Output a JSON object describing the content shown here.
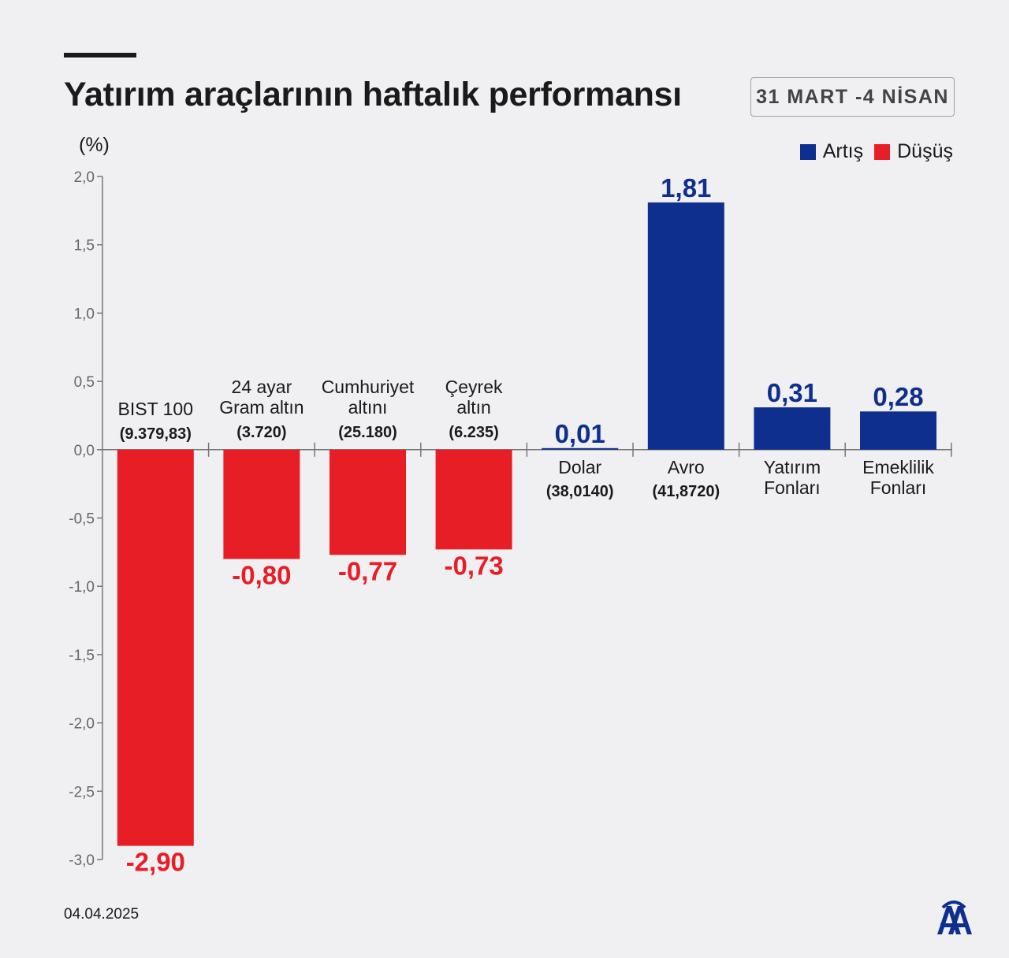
{
  "header": {
    "title": "Yatırım araçlarının haftalık performansı",
    "date_range": "31 MART -4 NİSAN"
  },
  "unit_label": "(%)",
  "legend": {
    "items": [
      {
        "label": "Artış",
        "color": "#0f2f8e"
      },
      {
        "label": "Düşüş",
        "color": "#e81e26"
      }
    ]
  },
  "footer": {
    "date": "04.04.2025",
    "logo": "anadolu-agency-logo"
  },
  "colors": {
    "increase": "#0f2f8e",
    "decrease": "#e81e26"
  },
  "chart_data": {
    "type": "bar",
    "ylim": [
      -3.0,
      2.0
    ],
    "yticks": [
      "2,0",
      "1,5",
      "1,0",
      "0,5",
      "0,0",
      "-0,5",
      "-1,0",
      "-1,5",
      "-2,0",
      "-2,5",
      "-3,0"
    ],
    "categories": [
      {
        "lines": [
          "BIST 100"
        ],
        "sub": "(9.379,83)"
      },
      {
        "lines": [
          "24 ayar",
          "Gram altın"
        ],
        "sub": "(3.720)"
      },
      {
        "lines": [
          "Cumhuriyet",
          "altını"
        ],
        "sub": "(25.180)"
      },
      {
        "lines": [
          "Çeyrek",
          "altın"
        ],
        "sub": "(6.235)"
      },
      {
        "lines": [
          "Dolar"
        ],
        "sub": "(38,0140)"
      },
      {
        "lines": [
          "Avro"
        ],
        "sub": "(41,8720)"
      },
      {
        "lines": [
          "Yatırım",
          "Fonları"
        ],
        "sub": ""
      },
      {
        "lines": [
          "Emeklilik",
          "Fonları"
        ],
        "sub": ""
      }
    ],
    "values": [
      -2.9,
      -0.8,
      -0.77,
      -0.73,
      0.01,
      1.81,
      0.31,
      0.28
    ],
    "value_labels": [
      "-2,90",
      "-0,80",
      "-0,77",
      "-0,73",
      "0,01",
      "1,81",
      "0,31",
      "0,28"
    ],
    "grid": false
  }
}
